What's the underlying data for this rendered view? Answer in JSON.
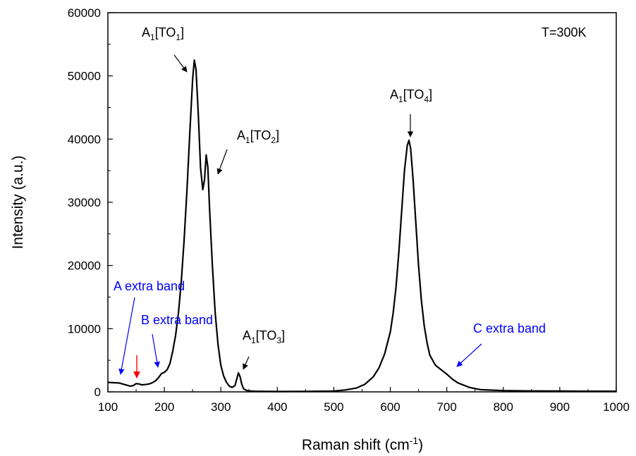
{
  "chart_data": {
    "type": "line",
    "xlabel": "Raman shift (cm",
    "xlabel_sup": "-1",
    "xlabel_tail": ")",
    "ylabel": "Intensity (a.u.)",
    "xlim": [
      100,
      1000
    ],
    "ylim": [
      0,
      60000
    ],
    "x_ticks": [
      100,
      200,
      300,
      400,
      500,
      600,
      700,
      800,
      900,
      1000
    ],
    "y_ticks": [
      0,
      10000,
      20000,
      30000,
      40000,
      50000,
      60000
    ],
    "grid": false,
    "temperature_label": "T=300K",
    "series": [
      {
        "color": "#000000",
        "points": [
          [
            100,
            1500
          ],
          [
            110,
            1450
          ],
          [
            120,
            1400
          ],
          [
            130,
            1150
          ],
          [
            140,
            900
          ],
          [
            145,
            1000
          ],
          [
            150,
            1300
          ],
          [
            155,
            1250
          ],
          [
            160,
            1100
          ],
          [
            165,
            1150
          ],
          [
            170,
            1200
          ],
          [
            175,
            1300
          ],
          [
            180,
            1500
          ],
          [
            185,
            1800
          ],
          [
            190,
            2300
          ],
          [
            195,
            2900
          ],
          [
            200,
            3100
          ],
          [
            205,
            3500
          ],
          [
            210,
            4500
          ],
          [
            215,
            6500
          ],
          [
            220,
            9000
          ],
          [
            225,
            12500
          ],
          [
            230,
            17500
          ],
          [
            235,
            24000
          ],
          [
            240,
            32000
          ],
          [
            245,
            41000
          ],
          [
            250,
            49500
          ],
          [
            253,
            52500
          ],
          [
            256,
            51000
          ],
          [
            260,
            44000
          ],
          [
            264,
            35500
          ],
          [
            268,
            32000
          ],
          [
            271,
            33500
          ],
          [
            274,
            37500
          ],
          [
            277,
            35500
          ],
          [
            280,
            29000
          ],
          [
            285,
            20000
          ],
          [
            290,
            12500
          ],
          [
            295,
            7500
          ],
          [
            300,
            4200
          ],
          [
            305,
            2500
          ],
          [
            310,
            1500
          ],
          [
            315,
            900
          ],
          [
            320,
            700
          ],
          [
            325,
            1000
          ],
          [
            328,
            2000
          ],
          [
            331,
            3000
          ],
          [
            334,
            2400
          ],
          [
            337,
            1200
          ],
          [
            340,
            500
          ],
          [
            345,
            250
          ],
          [
            350,
            150
          ],
          [
            360,
            100
          ],
          [
            380,
            80
          ],
          [
            400,
            60
          ],
          [
            450,
            80
          ],
          [
            500,
            120
          ],
          [
            520,
            300
          ],
          [
            540,
            600
          ],
          [
            555,
            1200
          ],
          [
            570,
            2400
          ],
          [
            580,
            3800
          ],
          [
            590,
            6000
          ],
          [
            600,
            9500
          ],
          [
            605,
            12500
          ],
          [
            610,
            16500
          ],
          [
            615,
            22000
          ],
          [
            620,
            28500
          ],
          [
            625,
            35000
          ],
          [
            630,
            39000
          ],
          [
            633,
            39800
          ],
          [
            636,
            38500
          ],
          [
            640,
            34000
          ],
          [
            645,
            27000
          ],
          [
            650,
            20000
          ],
          [
            655,
            14500
          ],
          [
            660,
            10500
          ],
          [
            665,
            7800
          ],
          [
            670,
            5800
          ],
          [
            680,
            4200
          ],
          [
            690,
            3500
          ],
          [
            700,
            2800
          ],
          [
            710,
            2000
          ],
          [
            720,
            1400
          ],
          [
            740,
            700
          ],
          [
            760,
            350
          ],
          [
            800,
            200
          ],
          [
            850,
            150
          ],
          [
            900,
            120
          ],
          [
            950,
            100
          ],
          [
            1000,
            100
          ]
        ]
      }
    ],
    "annotations": [
      {
        "id": "a1-to1",
        "base": "A",
        "sub": "1",
        "bracket_open": "[TO",
        "sub2": "1",
        "bracket_close": "]",
        "color": "#000000"
      },
      {
        "id": "a1-to2",
        "base": "A",
        "sub": "1",
        "bracket_open": "[TO",
        "sub2": "2",
        "bracket_close": "]",
        "color": "#000000"
      },
      {
        "id": "a1-to3",
        "base": "A",
        "sub": "1",
        "bracket_open": "[TO",
        "sub2": "3",
        "bracket_close": "]",
        "color": "#000000"
      },
      {
        "id": "a1-to4",
        "base": "A",
        "sub": "1",
        "bracket_open": "[TO",
        "sub2": "4",
        "bracket_close": "]",
        "color": "#000000"
      },
      {
        "id": "a-extra-band",
        "text": "A extra band",
        "color": "#0000ff"
      },
      {
        "id": "b-extra-band",
        "text": "B extra band",
        "color": "#0000ff"
      },
      {
        "id": "c-extra-band",
        "text": "C extra band",
        "color": "#0000ff"
      }
    ],
    "marker_arrow_color": "#ff0000"
  }
}
